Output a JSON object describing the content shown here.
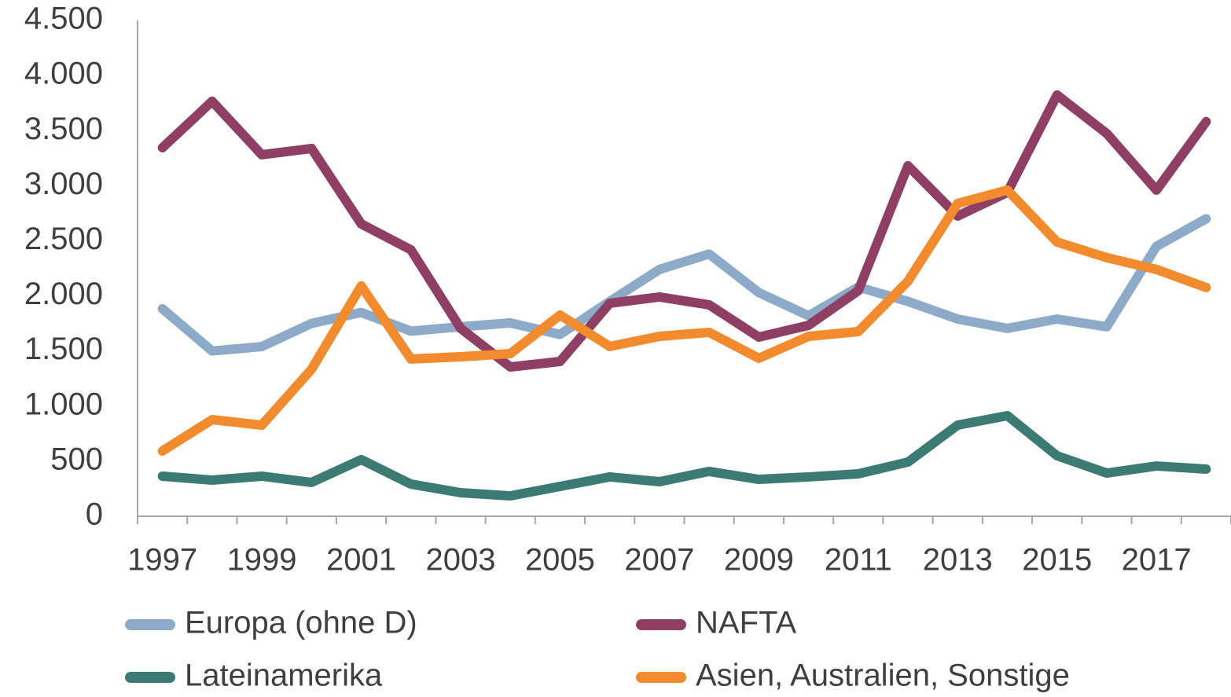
{
  "chart_data": {
    "type": "line",
    "categories": [
      "1997",
      null,
      "1999",
      null,
      "2001",
      null,
      "2003",
      null,
      "2005",
      null,
      "2007",
      null,
      "2009",
      null,
      "2011",
      null,
      "2013",
      null,
      "2015",
      null,
      "2017",
      null
    ],
    "series": [
      {
        "name": "Europa (ohne D)",
        "color": "#8eaac9",
        "values": [
          1883,
          1500,
          1540,
          1750,
          1850,
          1680,
          1720,
          1755,
          1650,
          1950,
          2240,
          2380,
          2030,
          1820,
          2080,
          1950,
          1790,
          1705,
          1790,
          1720,
          2450,
          2700
        ]
      },
      {
        "name": "NAFTA",
        "color": "#8e3f63",
        "values": [
          3345,
          3766,
          3281,
          3338,
          2653,
          2418,
          1705,
          1355,
          1405,
          1933,
          1990,
          1919,
          1626,
          1733,
          2047,
          3181,
          2725,
          2939,
          3823,
          3474,
          2960,
          3581
        ]
      },
      {
        "name": "Lateinamerika",
        "color": "#3b7b73",
        "values": [
          364,
          328,
          364,
          307,
          514,
          292,
          214,
          185,
          271,
          357,
          314,
          407,
          335,
          357,
          385,
          492,
          827,
          913,
          549,
          392,
          456,
          428
        ]
      },
      {
        "name": "Asien, Australien, Sonstige",
        "color": "#f28b2d",
        "values": [
          592,
          877,
          827,
          1334,
          2090,
          1427,
          1448,
          1476,
          1826,
          1541,
          1633,
          1669,
          1434,
          1633,
          1676,
          2133,
          2839,
          2960,
          2489,
          2347,
          2240,
          2076
        ]
      }
    ],
    "ylim": [
      0,
      4500
    ],
    "yticks": [
      0,
      500,
      {
        "value": 1000,
        "label": "1.000"
      },
      {
        "value": 1500,
        "label": "1.500"
      },
      {
        "value": 2000,
        "label": "2.000"
      },
      {
        "value": 2500,
        "label": "2.500"
      },
      {
        "value": 3000,
        "label": "3.000"
      },
      {
        "value": 3500,
        "label": "3.500"
      },
      {
        "value": 4000,
        "label": "4.000"
      },
      {
        "value": 4500,
        "label": "4.500"
      }
    ],
    "grid": false,
    "legend": "bottom"
  }
}
